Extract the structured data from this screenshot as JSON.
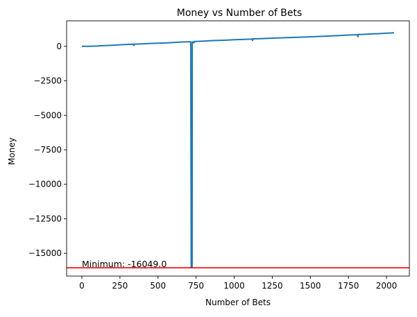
{
  "chart_data": {
    "type": "line",
    "title": "Money vs Number of Bets",
    "xlabel": "Number of Bets",
    "ylabel": "Money",
    "xlim": [
      -100,
      2150
    ],
    "ylim": [
      -16650,
      1850
    ],
    "xticks": [
      0,
      250,
      500,
      750,
      1000,
      1250,
      1500,
      1750,
      2000
    ],
    "yticks": [
      0,
      -2500,
      -5000,
      -7500,
      -10000,
      -12500,
      -15000
    ],
    "grid": false,
    "series": [
      {
        "color": "#1f77b4",
        "x": [
          0,
          30,
          60,
          100,
          120,
          150,
          200,
          250,
          300,
          340,
          341,
          345,
          400,
          450,
          500,
          550,
          600,
          650,
          700,
          714,
          715,
          718,
          719,
          720,
          724,
          725,
          728,
          735,
          738,
          740,
          800,
          850,
          900,
          950,
          1000,
          1050,
          1100,
          1119,
          1120,
          1125,
          1150,
          1200,
          1250,
          1300,
          1350,
          1400,
          1450,
          1500,
          1550,
          1600,
          1650,
          1700,
          1750,
          1800,
          1810,
          1812,
          1815,
          1850,
          1900,
          1950,
          2000,
          2050
        ],
        "y": [
          0,
          0,
          10,
          20,
          40,
          50,
          80,
          110,
          140,
          160,
          60,
          160,
          180,
          210,
          230,
          250,
          280,
          310,
          330,
          340,
          100,
          -16049,
          -16049,
          -16049,
          -16049,
          320,
          330,
          250,
          360,
          350,
          380,
          410,
          430,
          450,
          480,
          500,
          520,
          530,
          430,
          540,
          550,
          570,
          590,
          610,
          630,
          650,
          670,
          690,
          710,
          740,
          760,
          790,
          820,
          840,
          850,
          690,
          860,
          870,
          900,
          920,
          950,
          980
        ]
      }
    ],
    "hline": {
      "y": -16049.0,
      "color": "#ff0000"
    },
    "annotation": {
      "text": "Minimum: -16049.0",
      "x": 0,
      "y": -16049.0
    }
  }
}
